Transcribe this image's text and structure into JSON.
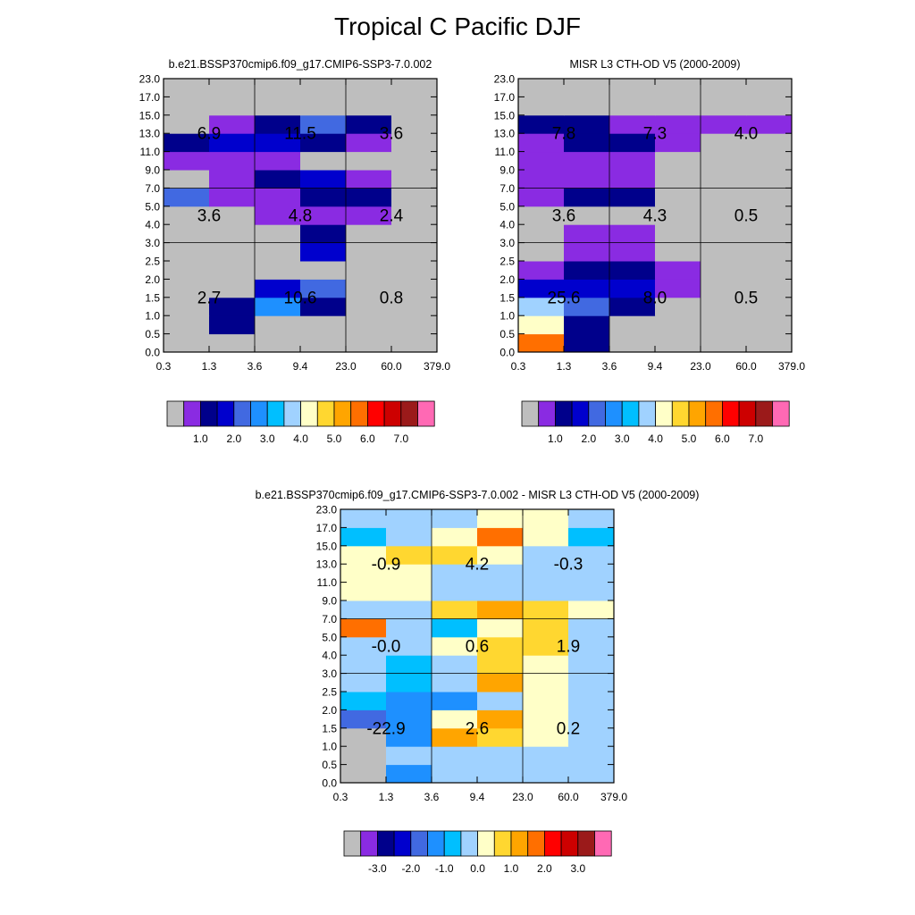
{
  "figure": {
    "title": "Tropical C Pacific DJF"
  },
  "palette": {
    "colors": [
      "#bebebe",
      "#8a2be2",
      "#00008b",
      "#0000cd",
      "#4169e1",
      "#1e90ff",
      "#00bfff",
      "#a0d2ff",
      "#ffffc8",
      "#ffd730",
      "#ffa500",
      "#ff6f00",
      "#ff0000",
      "#cd0000",
      "#9b1a1a",
      "#ff69b4"
    ]
  },
  "chart_data": [
    {
      "id": "model",
      "type": "heatmap",
      "title": "b.e21.BSSP370cmip6.f09_g17.CMIP6-SSP3-7.0.002",
      "xlabel": "",
      "ylabel": "",
      "x_ticks": [
        "0.3",
        "1.3",
        "3.6",
        "9.4",
        "23.0",
        "60.0",
        "379.0"
      ],
      "y_ticks": [
        "0.0",
        "0.5",
        "1.0",
        "1.5",
        "2.0",
        "2.5",
        "3.0",
        "4.0",
        "5.0",
        "7.0",
        "9.0",
        "11.0",
        "13.0",
        "15.0",
        "17.0",
        "23.0"
      ],
      "grid": {
        "x": [
          2,
          4
        ],
        "y": [
          6,
          9
        ]
      },
      "cells": [
        [
          0,
          0,
          0,
          0,
          0,
          0
        ],
        [
          0,
          2,
          0,
          0,
          0,
          0
        ],
        [
          0,
          2,
          5,
          2,
          0,
          0
        ],
        [
          0,
          0,
          3,
          4,
          0,
          0
        ],
        [
          0,
          0,
          0,
          0,
          0,
          0
        ],
        [
          0,
          0,
          0,
          3,
          0,
          0
        ],
        [
          0,
          0,
          0,
          2,
          0,
          0
        ],
        [
          0,
          0,
          1,
          1,
          1,
          0
        ],
        [
          4,
          1,
          1,
          2,
          2,
          0
        ],
        [
          0,
          1,
          2,
          3,
          1,
          0
        ],
        [
          1,
          1,
          1,
          0,
          0,
          0
        ],
        [
          2,
          3,
          3,
          2,
          1,
          0
        ],
        [
          0,
          1,
          2,
          4,
          2,
          0
        ],
        [
          0,
          0,
          0,
          0,
          0,
          0
        ],
        [
          0,
          0,
          0,
          0,
          0,
          0
        ]
      ],
      "annotations": [
        {
          "col": 0,
          "row": 0,
          "text": "2.7"
        },
        {
          "col": 1,
          "row": 0,
          "text": "10.6"
        },
        {
          "col": 2,
          "row": 0,
          "text": "0.8"
        },
        {
          "col": 0,
          "row": 1,
          "text": "3.6"
        },
        {
          "col": 1,
          "row": 1,
          "text": "4.8"
        },
        {
          "col": 2,
          "row": 1,
          "text": "2.4"
        },
        {
          "col": 0,
          "row": 2,
          "text": "6.9"
        },
        {
          "col": 1,
          "row": 2,
          "text": "11.5"
        },
        {
          "col": 2,
          "row": 2,
          "text": "3.6"
        }
      ],
      "colorbar": {
        "labels": [
          "1.0",
          "2.0",
          "3.0",
          "4.0",
          "5.0",
          "6.0",
          "7.0"
        ]
      }
    },
    {
      "id": "obs",
      "type": "heatmap",
      "title": "MISR L3 CTH-OD V5 (2000-2009)",
      "xlabel": "",
      "ylabel": "",
      "x_ticks": [
        "0.3",
        "1.3",
        "3.6",
        "9.4",
        "23.0",
        "60.0",
        "379.0"
      ],
      "y_ticks": [
        "0.0",
        "0.5",
        "1.0",
        "1.5",
        "2.0",
        "2.5",
        "3.0",
        "4.0",
        "5.0",
        "7.0",
        "9.0",
        "11.0",
        "13.0",
        "15.0",
        "17.0",
        "23.0"
      ],
      "grid": {
        "x": [
          2,
          4
        ],
        "y": [
          6,
          9
        ]
      },
      "cells": [
        [
          11,
          2,
          0,
          0,
          0,
          0
        ],
        [
          8,
          2,
          0,
          0,
          0,
          0
        ],
        [
          7,
          4,
          2,
          0,
          0,
          0
        ],
        [
          3,
          3,
          3,
          1,
          0,
          0
        ],
        [
          1,
          2,
          2,
          1,
          0,
          0
        ],
        [
          0,
          1,
          1,
          0,
          0,
          0
        ],
        [
          0,
          1,
          1,
          0,
          0,
          0
        ],
        [
          0,
          0,
          0,
          0,
          0,
          0
        ],
        [
          1,
          2,
          2,
          0,
          0,
          0
        ],
        [
          1,
          1,
          1,
          0,
          0,
          0
        ],
        [
          1,
          1,
          1,
          0,
          0,
          0
        ],
        [
          1,
          2,
          2,
          1,
          0,
          0
        ],
        [
          2,
          2,
          1,
          1,
          1,
          1
        ],
        [
          0,
          0,
          0,
          0,
          0,
          0
        ],
        [
          0,
          0,
          0,
          0,
          0,
          0
        ]
      ],
      "annotations": [
        {
          "col": 0,
          "row": 0,
          "text": "25.6"
        },
        {
          "col": 1,
          "row": 0,
          "text": "8.0"
        },
        {
          "col": 2,
          "row": 0,
          "text": "0.5"
        },
        {
          "col": 0,
          "row": 1,
          "text": "3.6"
        },
        {
          "col": 1,
          "row": 1,
          "text": "4.3"
        },
        {
          "col": 2,
          "row": 1,
          "text": "0.5"
        },
        {
          "col": 0,
          "row": 2,
          "text": "7.8"
        },
        {
          "col": 1,
          "row": 2,
          "text": "7.3"
        },
        {
          "col": 2,
          "row": 2,
          "text": "4.0"
        }
      ],
      "colorbar": {
        "labels": [
          "1.0",
          "2.0",
          "3.0",
          "4.0",
          "5.0",
          "6.0",
          "7.0"
        ]
      }
    },
    {
      "id": "diff",
      "type": "heatmap",
      "title": "b.e21.BSSP370cmip6.f09_g17.CMIP6-SSP3-7.0.002 - MISR L3 CTH-OD V5 (2000-2009)",
      "xlabel": "",
      "ylabel": "",
      "x_ticks": [
        "0.3",
        "1.3",
        "3.6",
        "9.4",
        "23.0",
        "60.0",
        "379.0"
      ],
      "y_ticks": [
        "0.0",
        "0.5",
        "1.0",
        "1.5",
        "2.0",
        "2.5",
        "3.0",
        "4.0",
        "5.0",
        "7.0",
        "9.0",
        "11.0",
        "13.0",
        "15.0",
        "17.0",
        "23.0"
      ],
      "grid": {
        "x": [
          2,
          4
        ],
        "y": [
          6,
          9
        ]
      },
      "cells": [
        [
          0,
          5,
          7,
          7,
          7,
          7
        ],
        [
          0,
          7,
          7,
          7,
          7,
          7
        ],
        [
          0,
          5,
          10,
          9,
          8,
          7
        ],
        [
          4,
          5,
          8,
          10,
          8,
          7
        ],
        [
          6,
          5,
          5,
          7,
          8,
          7
        ],
        [
          7,
          6,
          7,
          10,
          8,
          7
        ],
        [
          7,
          6,
          7,
          9,
          8,
          7
        ],
        [
          7,
          7,
          8,
          9,
          9,
          7
        ],
        [
          11,
          7,
          6,
          8,
          9,
          7
        ],
        [
          7,
          7,
          9,
          10,
          9,
          8
        ],
        [
          8,
          8,
          7,
          7,
          7,
          7
        ],
        [
          8,
          8,
          7,
          7,
          7,
          7
        ],
        [
          8,
          9,
          9,
          8,
          7,
          7
        ],
        [
          6,
          7,
          8,
          11,
          8,
          6
        ],
        [
          7,
          7,
          7,
          8,
          8,
          7
        ]
      ],
      "annotations": [
        {
          "col": 0,
          "row": 0,
          "text": "-22.9"
        },
        {
          "col": 1,
          "row": 0,
          "text": "2.6"
        },
        {
          "col": 2,
          "row": 0,
          "text": "0.2"
        },
        {
          "col": 0,
          "row": 1,
          "text": "-0.0"
        },
        {
          "col": 1,
          "row": 1,
          "text": "0.6"
        },
        {
          "col": 2,
          "row": 1,
          "text": "1.9"
        },
        {
          "col": 0,
          "row": 2,
          "text": "-0.9"
        },
        {
          "col": 1,
          "row": 2,
          "text": "4.2"
        },
        {
          "col": 2,
          "row": 2,
          "text": "-0.3"
        }
      ],
      "colorbar": {
        "labels": [
          "-3.0",
          "-2.0",
          "-1.0",
          "0.0",
          "1.0",
          "2.0",
          "3.0"
        ]
      }
    }
  ]
}
